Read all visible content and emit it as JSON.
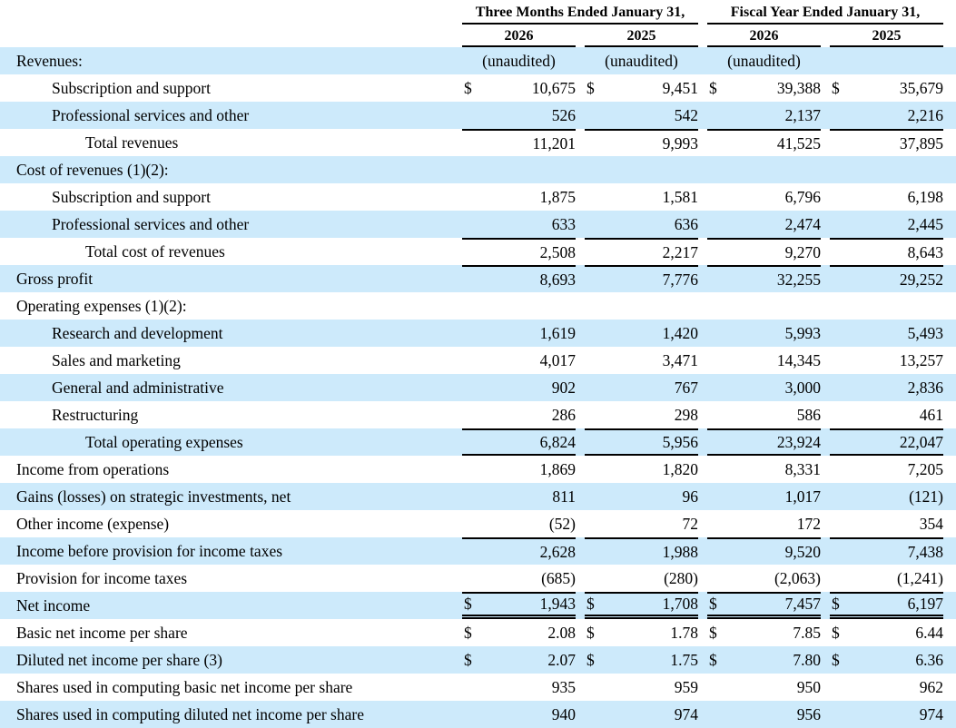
{
  "header": {
    "groups": [
      {
        "title": "Three Months Ended January 31,",
        "years": [
          "2026",
          "2025"
        ]
      },
      {
        "title": "Fiscal Year Ended January 31,",
        "years": [
          "2026",
          "2025"
        ]
      }
    ]
  },
  "colors": {
    "stripe": "#cdeafb",
    "rule": "#000000",
    "text": "#000000"
  },
  "rows": [
    {
      "label": "Revenues:",
      "indent": 0,
      "shaded": true,
      "dollar": false,
      "center": true,
      "values": [
        "(unaudited)",
        "(unaudited)",
        "(unaudited)",
        ""
      ]
    },
    {
      "label": "Subscription and support",
      "indent": 1,
      "shaded": false,
      "dollar": true,
      "values": [
        "10,675",
        "9,451",
        "39,388",
        "35,679"
      ]
    },
    {
      "label": "Professional services and other",
      "indent": 1,
      "shaded": true,
      "dollar": false,
      "values": [
        "526",
        "542",
        "2,137",
        "2,216"
      ]
    },
    {
      "label": "Total revenues",
      "indent": 2,
      "shaded": false,
      "dollar": false,
      "rule_top": true,
      "values": [
        "11,201",
        "9,993",
        "41,525",
        "37,895"
      ]
    },
    {
      "label": "Cost of revenues (1)(2):",
      "indent": 0,
      "shaded": true,
      "dollar": false,
      "values": [
        "",
        "",
        "",
        ""
      ]
    },
    {
      "label": "Subscription and support",
      "indent": 1,
      "shaded": false,
      "dollar": false,
      "values": [
        "1,875",
        "1,581",
        "6,796",
        "6,198"
      ]
    },
    {
      "label": "Professional services and other",
      "indent": 1,
      "shaded": true,
      "dollar": false,
      "values": [
        "633",
        "636",
        "2,474",
        "2,445"
      ]
    },
    {
      "label": "Total cost of revenues",
      "indent": 2,
      "shaded": false,
      "dollar": false,
      "rule_top": true,
      "values": [
        "2,508",
        "2,217",
        "9,270",
        "8,643"
      ]
    },
    {
      "label": "Gross profit",
      "indent": 0,
      "shaded": true,
      "dollar": false,
      "rule_top": true,
      "values": [
        "8,693",
        "7,776",
        "32,255",
        "29,252"
      ]
    },
    {
      "label": "Operating expenses (1)(2):",
      "indent": 0,
      "shaded": false,
      "dollar": false,
      "values": [
        "",
        "",
        "",
        ""
      ]
    },
    {
      "label": "Research and development",
      "indent": 1,
      "shaded": true,
      "dollar": false,
      "values": [
        "1,619",
        "1,420",
        "5,993",
        "5,493"
      ]
    },
    {
      "label": "Sales and marketing",
      "indent": 1,
      "shaded": false,
      "dollar": false,
      "values": [
        "4,017",
        "3,471",
        "14,345",
        "13,257"
      ]
    },
    {
      "label": "General and administrative",
      "indent": 1,
      "shaded": true,
      "dollar": false,
      "values": [
        "902",
        "767",
        "3,000",
        "2,836"
      ]
    },
    {
      "label": "Restructuring",
      "indent": 1,
      "shaded": false,
      "dollar": false,
      "values": [
        "286",
        "298",
        "586",
        "461"
      ]
    },
    {
      "label": "Total operating expenses",
      "indent": 2,
      "shaded": true,
      "dollar": false,
      "rule_top": true,
      "rule_bottom": true,
      "values": [
        "6,824",
        "5,956",
        "23,924",
        "22,047"
      ]
    },
    {
      "label": "Income from operations",
      "indent": 0,
      "shaded": false,
      "dollar": false,
      "values": [
        "1,869",
        "1,820",
        "8,331",
        "7,205"
      ]
    },
    {
      "label": "Gains (losses) on strategic investments, net",
      "indent": 0,
      "shaded": true,
      "dollar": false,
      "values": [
        "811",
        "96",
        "1,017",
        "(121)"
      ]
    },
    {
      "label": "Other income (expense)",
      "indent": 0,
      "shaded": false,
      "dollar": false,
      "values": [
        "(52)",
        "72",
        "172",
        "354"
      ]
    },
    {
      "label": "Income before provision for income taxes",
      "indent": 0,
      "shaded": true,
      "dollar": false,
      "rule_top": true,
      "values": [
        "2,628",
        "1,988",
        "9,520",
        "7,438"
      ]
    },
    {
      "label": "Provision for income taxes",
      "indent": 0,
      "shaded": false,
      "dollar": false,
      "values": [
        "(685)",
        "(280)",
        "(2,063)",
        "(1,241)"
      ]
    },
    {
      "label": "Net income",
      "indent": 0,
      "shaded": true,
      "dollar": true,
      "rule_top": true,
      "double_bottom": true,
      "values": [
        "1,943",
        "1,708",
        "7,457",
        "6,197"
      ]
    },
    {
      "label": "Basic net income per share",
      "indent": 0,
      "shaded": false,
      "dollar": true,
      "values": [
        "2.08",
        "1.78",
        "7.85",
        "6.44"
      ]
    },
    {
      "label": "Diluted net income per share (3)",
      "indent": 0,
      "shaded": true,
      "dollar": true,
      "values": [
        "2.07",
        "1.75",
        "7.80",
        "6.36"
      ]
    },
    {
      "label": "Shares used in computing basic net income per share",
      "indent": 0,
      "shaded": false,
      "dollar": false,
      "values": [
        "935",
        "959",
        "950",
        "962"
      ]
    },
    {
      "label": "Shares used in computing diluted net income per share",
      "indent": 0,
      "shaded": true,
      "dollar": false,
      "values": [
        "940",
        "974",
        "956",
        "974"
      ]
    }
  ]
}
